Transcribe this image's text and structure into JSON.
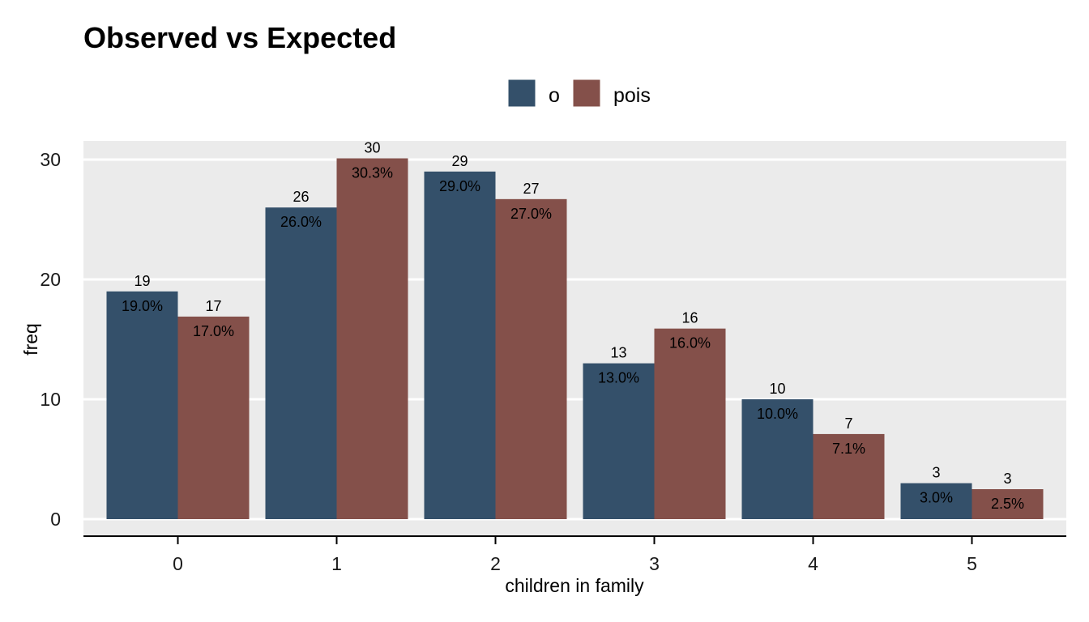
{
  "chart_data": {
    "type": "bar",
    "title": "Observed vs Expected",
    "xlabel": "children in family",
    "ylabel": "freq",
    "categories": [
      "0",
      "1",
      "2",
      "3",
      "4",
      "5"
    ],
    "ylim": [
      0,
      31.5
    ],
    "yticks": [
      0,
      10,
      20,
      30
    ],
    "grid": true,
    "legend_position": "top",
    "series": [
      {
        "name": "o",
        "color": "#34506a",
        "values": [
          19,
          26,
          29,
          13,
          10,
          3
        ],
        "count_labels": [
          "19",
          "26",
          "29",
          "13",
          "10",
          "3"
        ],
        "pct_labels": [
          "19.0%",
          "26.0%",
          "29.0%",
          "13.0%",
          "10.0%",
          "3.0%"
        ]
      },
      {
        "name": "pois",
        "color": "#84504a",
        "values": [
          16.9,
          30.1,
          26.7,
          15.9,
          7.1,
          2.5
        ],
        "count_labels": [
          "17",
          "30",
          "27",
          "16",
          "7",
          "3"
        ],
        "pct_labels": [
          "17.0%",
          "30.3%",
          "27.0%",
          "16.0%",
          "7.1%",
          "2.5%"
        ]
      }
    ]
  },
  "colors": {
    "panel_background": "#ebebeb",
    "gridline": "#ffffff",
    "axis_line": "#000000"
  }
}
